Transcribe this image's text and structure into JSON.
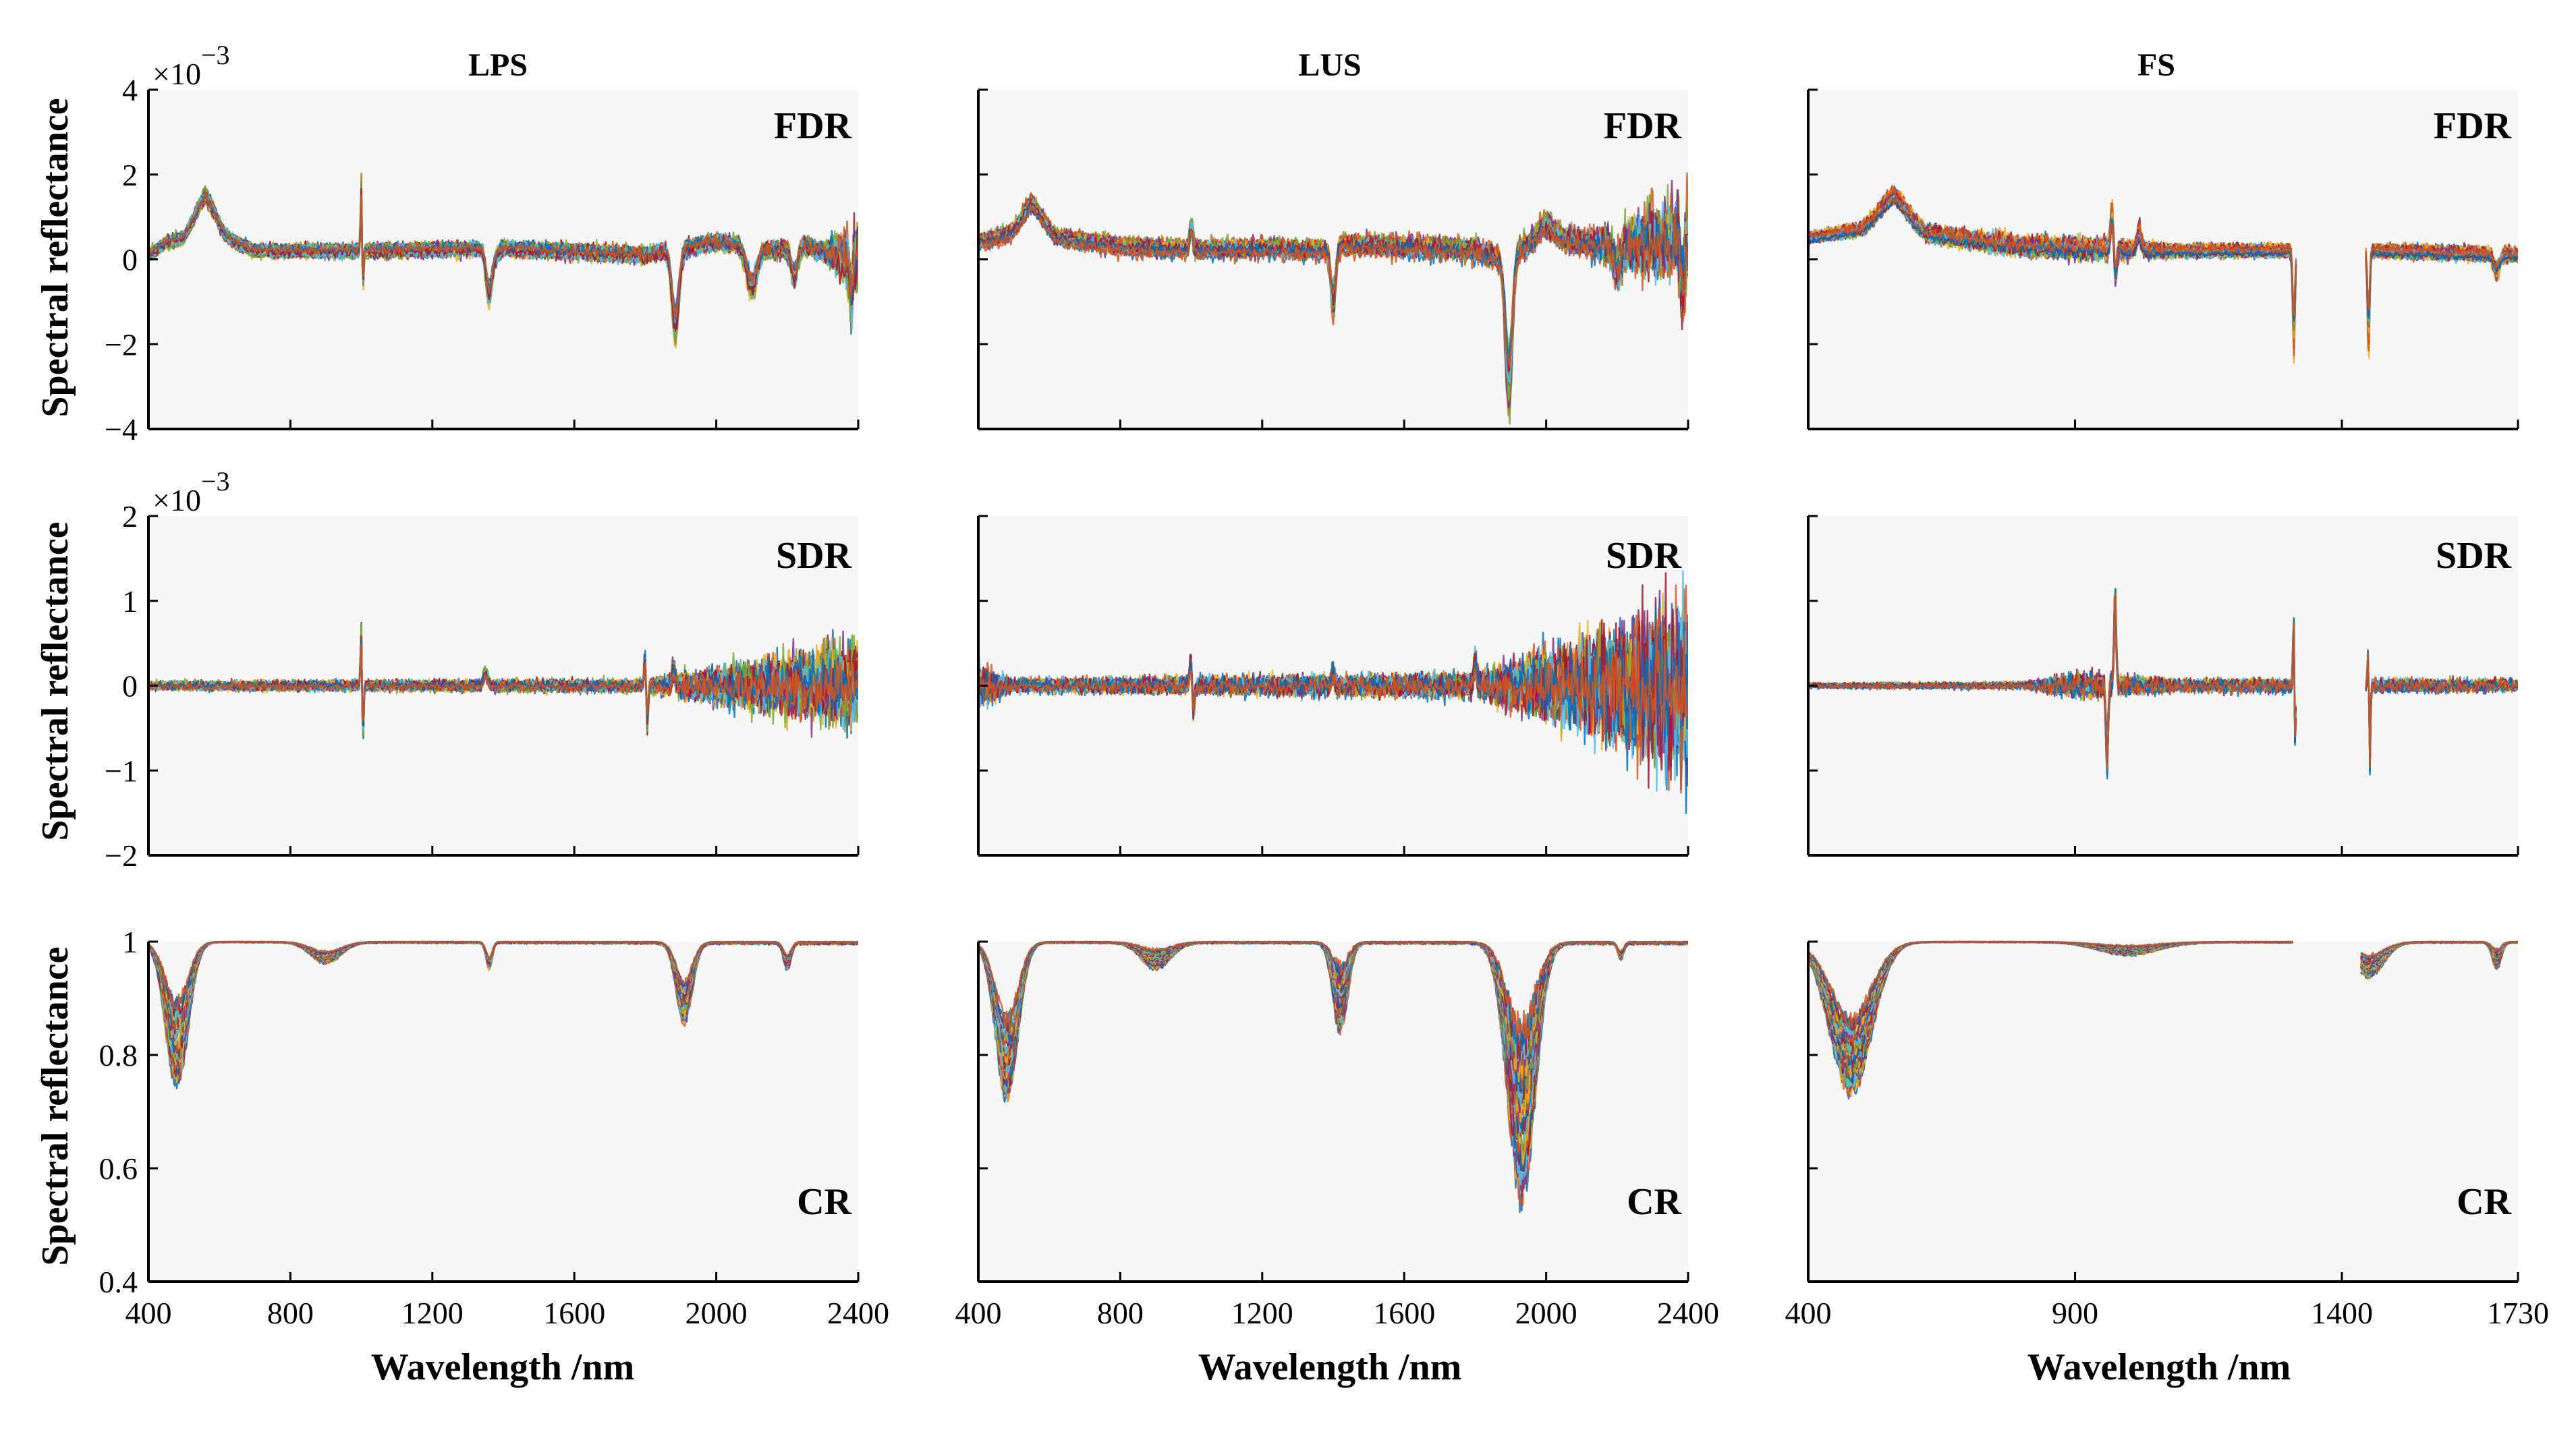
{
  "chart_data": {
    "type": "line",
    "figure": {
      "xlabel": "Wavelength /nm",
      "ylabel": "Spectral reflectance"
    },
    "columns": [
      {
        "title": "LPS",
        "xlim": [
          400,
          2400
        ],
        "xticks": [
          400,
          800,
          1200,
          1600,
          2000,
          2400
        ],
        "xtick_labels": [
          "400",
          "800",
          "1200",
          "1600",
          "2000",
          "2400"
        ]
      },
      {
        "title": "LUS",
        "xlim": [
          400,
          2400
        ],
        "xticks": [
          400,
          800,
          1200,
          1600,
          2000,
          2400
        ],
        "xtick_labels": [
          "400",
          "800",
          "1200",
          "1600",
          "2000",
          "2400"
        ]
      },
      {
        "title": "FS",
        "xlim": [
          400,
          1730
        ],
        "xticks": [
          400,
          900,
          1400,
          1730
        ],
        "xtick_labels": [
          "400",
          "900",
          "1400",
          "1730"
        ]
      }
    ],
    "rows": [
      {
        "label": "FDR",
        "ylim": [
          -4,
          4
        ],
        "yticks": [
          -4,
          -2,
          0,
          2,
          4
        ],
        "ytick_labels": [
          "−4",
          "−2",
          "0",
          "2",
          "4"
        ],
        "exponent_base": "×10",
        "exponent_power": "−3"
      },
      {
        "label": "SDR",
        "ylim": [
          -2,
          2
        ],
        "yticks": [
          -2,
          -1,
          0,
          1,
          2
        ],
        "ytick_labels": [
          "−2",
          "−1",
          "0",
          "1",
          "2"
        ],
        "exponent_base": "×10",
        "exponent_power": "−3"
      },
      {
        "label": "CR",
        "ylim": [
          0.4,
          1
        ],
        "yticks": [
          0.4,
          0.6,
          0.8,
          1
        ],
        "ytick_labels": [
          "0.4",
          "0.6",
          "0.8",
          "1"
        ],
        "exponent_base": "",
        "exponent_power": ""
      }
    ],
    "series_colors": [
      "#0072bd",
      "#d95319",
      "#edb120",
      "#7e2f8e",
      "#77ac30",
      "#4dbeee",
      "#a2142f"
    ],
    "curves_per_panel": 30,
    "panels": [
      {
        "id": "LPS-FDR",
        "row": 0,
        "col": 0,
        "kind": "deriv",
        "baseline": [
          [
            400,
            0.1
          ],
          [
            450,
            0.4
          ],
          [
            500,
            0.5
          ],
          [
            560,
            1.2
          ],
          [
            620,
            0.5
          ],
          [
            700,
            0.2
          ],
          [
            1000,
            0.2
          ],
          [
            1340,
            0.25
          ],
          [
            1380,
            0.1
          ],
          [
            1400,
            0.25
          ],
          [
            1800,
            0.1
          ],
          [
            2000,
            0.4
          ],
          [
            2150,
            0.2
          ],
          [
            2250,
            0.3
          ],
          [
            2400,
            0.0
          ]
        ],
        "features": [
          {
            "x": 560,
            "a": 0.3,
            "w": 40
          },
          {
            "x": 1000,
            "a": 1.5,
            "w": 3
          },
          {
            "x": 1004,
            "a": -1.0,
            "w": 3
          },
          {
            "x": 1360,
            "a": -1.0,
            "w": 12
          },
          {
            "x": 1885,
            "a": -1.8,
            "w": 14
          },
          {
            "x": 2100,
            "a": -0.9,
            "w": 20
          },
          {
            "x": 2220,
            "a": -0.7,
            "w": 12
          },
          {
            "x": 2380,
            "a": -0.9,
            "w": 6
          }
        ],
        "noise": [
          [
            400,
            0.08
          ],
          [
            2300,
            0.15
          ],
          [
            2400,
            0.7
          ]
        ],
        "spread": 0.2
      },
      {
        "id": "LUS-FDR",
        "row": 0,
        "col": 1,
        "kind": "deriv",
        "baseline": [
          [
            400,
            0.4
          ],
          [
            500,
            0.6
          ],
          [
            550,
            1.0
          ],
          [
            620,
            0.5
          ],
          [
            800,
            0.3
          ],
          [
            1000,
            0.2
          ],
          [
            1200,
            0.25
          ],
          [
            1370,
            0.2
          ],
          [
            1420,
            0.35
          ],
          [
            1800,
            0.2
          ],
          [
            1870,
            0.0
          ],
          [
            1990,
            0.5
          ],
          [
            2200,
            0.3
          ],
          [
            2400,
            0.5
          ]
        ],
        "features": [
          {
            "x": 550,
            "a": 0.3,
            "w": 40
          },
          {
            "x": 1000,
            "a": 0.6,
            "w": 6
          },
          {
            "x": 1400,
            "a": -1.3,
            "w": 10
          },
          {
            "x": 1895,
            "a": -3.0,
            "w": 14
          },
          {
            "x": 2000,
            "a": 0.3,
            "w": 30
          },
          {
            "x": 2200,
            "a": -0.5,
            "w": 15
          },
          {
            "x": 2385,
            "a": -1.2,
            "w": 8
          }
        ],
        "noise": [
          [
            400,
            0.1
          ],
          [
            2100,
            0.2
          ],
          [
            2400,
            0.9
          ]
        ],
        "spread": 0.3
      },
      {
        "id": "FS-FDR",
        "row": 0,
        "col": 2,
        "kind": "deriv",
        "baseline": [
          [
            400,
            0.5
          ],
          [
            500,
            0.7
          ],
          [
            560,
            1.2
          ],
          [
            620,
            0.6
          ],
          [
            800,
            0.3
          ],
          [
            1050,
            0.2
          ],
          [
            1300,
            0.2
          ],
          [
            1450,
            0.2
          ],
          [
            1730,
            0.1
          ]
        ],
        "features": [
          {
            "x": 560,
            "a": 0.3,
            "w": 35
          },
          {
            "x": 970,
            "a": 1.0,
            "w": 4
          },
          {
            "x": 975,
            "a": -0.8,
            "w": 4
          },
          {
            "x": 1020,
            "a": 0.4,
            "w": 6
          },
          {
            "x": 1310,
            "a": -2.0,
            "w": 3
          },
          {
            "x": 1450,
            "a": -2.0,
            "w": 3
          },
          {
            "x": 1690,
            "a": -0.4,
            "w": 8
          }
        ],
        "noise": [
          [
            400,
            0.06
          ],
          [
            900,
            0.2
          ],
          [
            1100,
            0.08
          ],
          [
            1730,
            0.1
          ]
        ],
        "spread": 0.25,
        "gap": [
          1315,
          1445
        ]
      },
      {
        "id": "LPS-SDR",
        "row": 1,
        "col": 0,
        "kind": "deriv",
        "baseline": [
          [
            400,
            0.0
          ],
          [
            2400,
            0.0
          ]
        ],
        "features": [
          {
            "x": 1000,
            "a": 0.7,
            "w": 3
          },
          {
            "x": 1004,
            "a": -0.7,
            "w": 3
          },
          {
            "x": 1350,
            "a": 0.15,
            "w": 8
          },
          {
            "x": 1800,
            "a": 0.4,
            "w": 4
          },
          {
            "x": 1805,
            "a": -0.5,
            "w": 4
          },
          {
            "x": 1880,
            "a": 0.2,
            "w": 6
          }
        ],
        "noise": [
          [
            400,
            0.04
          ],
          [
            1800,
            0.06
          ],
          [
            2400,
            0.4
          ]
        ],
        "spread": 0.02
      },
      {
        "id": "LUS-SDR",
        "row": 1,
        "col": 1,
        "kind": "deriv",
        "baseline": [
          [
            400,
            0.0
          ],
          [
            2400,
            0.0
          ]
        ],
        "features": [
          {
            "x": 1000,
            "a": 0.4,
            "w": 5
          },
          {
            "x": 1005,
            "a": -0.4,
            "w": 5
          },
          {
            "x": 1400,
            "a": 0.15,
            "w": 6
          },
          {
            "x": 1800,
            "a": 0.3,
            "w": 5
          }
        ],
        "noise": [
          [
            400,
            0.2
          ],
          [
            500,
            0.06
          ],
          [
            1800,
            0.12
          ],
          [
            2400,
            0.8
          ]
        ],
        "spread": 0.03
      },
      {
        "id": "FS-SDR",
        "row": 1,
        "col": 2,
        "kind": "deriv",
        "baseline": [
          [
            400,
            0.0
          ],
          [
            1730,
            0.0
          ]
        ],
        "features": [
          {
            "x": 960,
            "a": -0.8,
            "w": 3
          },
          {
            "x": 975,
            "a": 0.9,
            "w": 3
          },
          {
            "x": 1310,
            "a": 1.0,
            "w": 2
          },
          {
            "x": 1312,
            "a": -0.9,
            "w": 2
          },
          {
            "x": 1450,
            "a": 0.6,
            "w": 2
          },
          {
            "x": 1452,
            "a": -1.0,
            "w": 2
          }
        ],
        "noise": [
          [
            400,
            0.02
          ],
          [
            800,
            0.03
          ],
          [
            900,
            0.12
          ],
          [
            1100,
            0.06
          ],
          [
            1730,
            0.06
          ]
        ],
        "spread": 0.02,
        "gap": [
          1315,
          1445
        ]
      },
      {
        "id": "LPS-CR",
        "row": 2,
        "col": 0,
        "kind": "cr",
        "dips": [
          {
            "x": 480,
            "min": 0.73,
            "max": 0.91,
            "w": 45
          },
          {
            "x": 900,
            "min": 0.96,
            "max": 0.985,
            "w": 60
          },
          {
            "x": 1360,
            "min": 0.95,
            "max": 0.975,
            "w": 12
          },
          {
            "x": 1910,
            "min": 0.85,
            "max": 0.94,
            "w": 32
          },
          {
            "x": 2200,
            "min": 0.95,
            "max": 0.98,
            "w": 15
          }
        ],
        "noise": [
          [
            400,
            0.001
          ],
          [
            2400,
            0.004
          ]
        ]
      },
      {
        "id": "LUS-CR",
        "row": 2,
        "col": 1,
        "kind": "cr",
        "dips": [
          {
            "x": 480,
            "min": 0.71,
            "max": 0.88,
            "w": 45
          },
          {
            "x": 900,
            "min": 0.95,
            "max": 0.99,
            "w": 60
          },
          {
            "x": 1420,
            "min": 0.83,
            "max": 0.97,
            "w": 30
          },
          {
            "x": 1930,
            "min": 0.52,
            "max": 0.88,
            "w": 55
          },
          {
            "x": 2210,
            "min": 0.97,
            "max": 0.985,
            "w": 12
          }
        ],
        "noise": [
          [
            400,
            0.002
          ],
          [
            2400,
            0.004
          ]
        ]
      },
      {
        "id": "FS-CR",
        "row": 2,
        "col": 2,
        "kind": "cr",
        "dips": [
          {
            "x": 480,
            "min": 0.72,
            "max": 0.88,
            "w": 55
          },
          {
            "x": 1000,
            "min": 0.975,
            "max": 0.995,
            "w": 80
          },
          {
            "x": 1450,
            "min": 0.935,
            "max": 0.98,
            "w": 40
          },
          {
            "x": 1690,
            "min": 0.95,
            "max": 0.99,
            "w": 12
          }
        ],
        "noise": [
          [
            400,
            0.001
          ],
          [
            1730,
            0.002
          ]
        ],
        "gap": [
          1310,
          1435
        ]
      }
    ]
  }
}
